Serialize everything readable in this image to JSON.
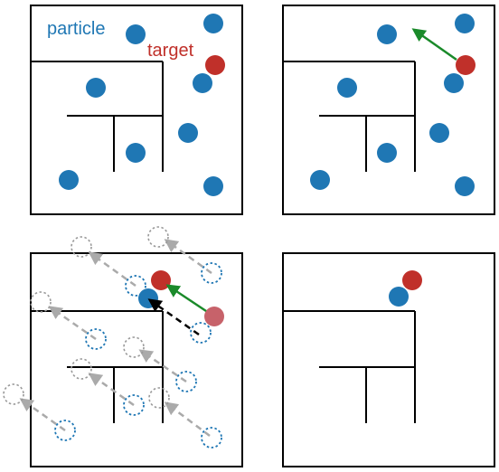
{
  "labels": {
    "particle": "particle",
    "target": "target"
  },
  "colors": {
    "particle": "#1f77b4",
    "target": "#c0302a",
    "target_faded": "#c7626a",
    "wall": "#000000",
    "move_arrow": "#1a8a2a",
    "predicted_arrow": "#000000",
    "ghost_dashed": "#aaaaaa",
    "ghost_circle": "#999999"
  },
  "panels": [
    {
      "id": "panel-initial",
      "description_key": "top-left"
    },
    {
      "id": "panel-target-move",
      "description_key": "top-right"
    },
    {
      "id": "panel-particle-update",
      "description_key": "bottom-left"
    },
    {
      "id": "panel-result",
      "description_key": "bottom-right"
    }
  ]
}
